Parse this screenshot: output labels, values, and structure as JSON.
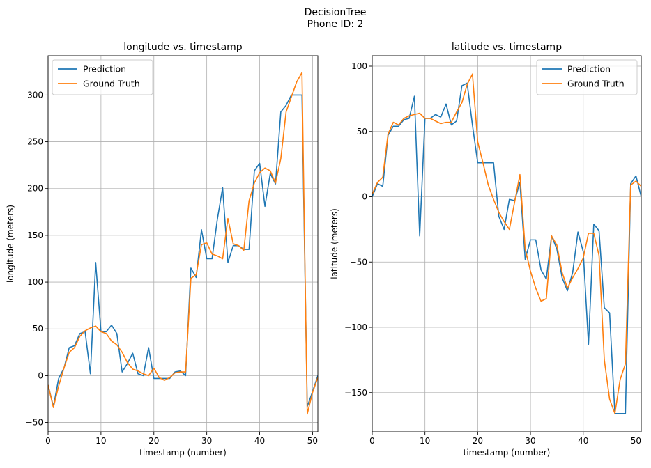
{
  "suptitle_line1": "DecisionTree",
  "suptitle_line2": "Phone ID: 2",
  "colors": {
    "prediction": "#1f77b4",
    "ground_truth": "#ff7f0e",
    "grid": "#b0b0b0"
  },
  "chart_data": [
    {
      "type": "line",
      "title": "longitude vs. timestamp",
      "xlabel": "timestamp (number)",
      "ylabel": "longitude (meters)",
      "xlim": [
        0,
        51
      ],
      "ylim": [
        -60,
        342
      ],
      "xticks": [
        0,
        10,
        20,
        30,
        40,
        50
      ],
      "yticks": [
        -50,
        0,
        50,
        100,
        150,
        200,
        250,
        300
      ],
      "grid": true,
      "legend_position": "upper left",
      "x": [
        0,
        1,
        2,
        3,
        4,
        5,
        6,
        7,
        8,
        9,
        10,
        11,
        12,
        13,
        14,
        15,
        16,
        17,
        18,
        19,
        20,
        21,
        22,
        23,
        24,
        25,
        26,
        27,
        28,
        29,
        30,
        31,
        32,
        33,
        34,
        35,
        36,
        37,
        38,
        39,
        40,
        41,
        42,
        43,
        44,
        45,
        46,
        47,
        48,
        49,
        50,
        51
      ],
      "series": [
        {
          "name": "Prediction",
          "color": "#1f77b4",
          "values": [
            -10,
            -33,
            -3,
            8,
            30,
            32,
            45,
            47,
            2,
            121,
            47,
            47,
            54,
            45,
            4,
            13,
            24,
            2,
            0,
            30,
            -3,
            -3,
            -3,
            -3,
            4,
            5,
            0,
            115,
            105,
            156,
            125,
            125,
            167,
            201,
            121,
            139,
            139,
            135,
            135,
            219,
            227,
            181,
            216,
            205,
            282,
            289,
            300,
            300,
            300,
            -33,
            -17,
            0
          ]
        },
        {
          "name": "Ground Truth",
          "color": "#ff7f0e",
          "values": [
            -10,
            -34,
            -11,
            8,
            25,
            30,
            42,
            48,
            51,
            53,
            47,
            45,
            37,
            33,
            25,
            14,
            7,
            5,
            2,
            0,
            8,
            -2,
            -5,
            -2,
            3,
            4,
            4,
            104,
            108,
            140,
            142,
            130,
            128,
            125,
            168,
            141,
            139,
            134,
            187,
            206,
            217,
            222,
            219,
            206,
            232,
            282,
            298,
            314,
            324,
            -41,
            -18,
            -2
          ]
        }
      ]
    },
    {
      "type": "line",
      "title": "latitude vs. timestamp",
      "xlabel": "timestamp (number)",
      "ylabel": "latitude (meters)",
      "xlim": [
        0,
        51
      ],
      "ylim": [
        -180,
        108
      ],
      "xticks": [
        0,
        10,
        20,
        30,
        40,
        50
      ],
      "yticks": [
        -150,
        -100,
        -50,
        0,
        50,
        100
      ],
      "grid": true,
      "legend_position": "upper right",
      "x": [
        0,
        1,
        2,
        3,
        4,
        5,
        6,
        7,
        8,
        9,
        10,
        11,
        12,
        13,
        14,
        15,
        16,
        17,
        18,
        19,
        20,
        21,
        22,
        23,
        24,
        25,
        26,
        27,
        28,
        29,
        30,
        31,
        32,
        33,
        34,
        35,
        36,
        37,
        38,
        39,
        40,
        41,
        42,
        43,
        44,
        45,
        46,
        47,
        48,
        49,
        50,
        51
      ],
      "series": [
        {
          "name": "Prediction",
          "color": "#1f77b4",
          "values": [
            0,
            10,
            8,
            47,
            54,
            54,
            59,
            60,
            77,
            -30,
            60,
            60,
            63,
            61,
            71,
            55,
            58,
            85,
            87,
            55,
            26,
            26,
            26,
            26,
            -15,
            -25,
            -2,
            -3,
            11,
            -48,
            -33,
            -33,
            -56,
            -63,
            -30,
            -40,
            -62,
            -72,
            -58,
            -27,
            -42,
            -113,
            -21,
            -26,
            -85,
            -89,
            -166,
            -166,
            -166,
            10,
            16,
            0
          ]
        },
        {
          "name": "Ground Truth",
          "color": "#ff7f0e",
          "values": [
            2,
            11,
            15,
            48,
            57,
            55,
            60,
            62,
            63,
            64,
            60,
            60,
            58,
            56,
            57,
            57,
            65,
            72,
            86,
            94,
            42,
            26,
            9,
            -2,
            -12,
            -19,
            -25,
            -4,
            17,
            -40,
            -57,
            -70,
            -80,
            -78,
            -30,
            -37,
            -58,
            -70,
            -62,
            -55,
            -47,
            -28,
            -28,
            -45,
            -125,
            -155,
            -166,
            -140,
            -128,
            9,
            12,
            8
          ]
        }
      ]
    }
  ]
}
